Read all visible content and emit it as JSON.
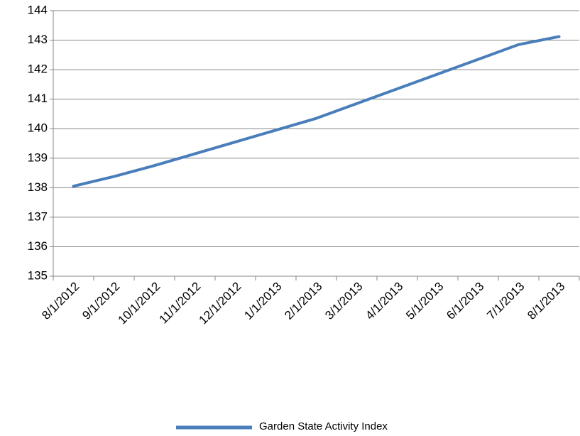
{
  "chart_data": {
    "type": "line",
    "categories": [
      "8/1/2012",
      "9/1/2012",
      "10/1/2012",
      "11/1/2012",
      "12/1/2012",
      "1/1/2013",
      "2/1/2013",
      "3/1/2013",
      "4/1/2013",
      "5/1/2013",
      "6/1/2013",
      "7/1/2013",
      "8/1/2013"
    ],
    "series": [
      {
        "name": "Garden State Activity Index",
        "color": "#4a7ebb",
        "values": [
          138.05,
          138.38,
          138.75,
          139.15,
          139.55,
          139.95,
          140.35,
          140.85,
          141.35,
          141.85,
          142.35,
          142.85,
          143.12
        ]
      }
    ],
    "ylim": [
      135,
      144
    ],
    "yticks": [
      135,
      136,
      137,
      138,
      139,
      140,
      141,
      142,
      143,
      144
    ],
    "grid": true,
    "legend": "bottom"
  }
}
